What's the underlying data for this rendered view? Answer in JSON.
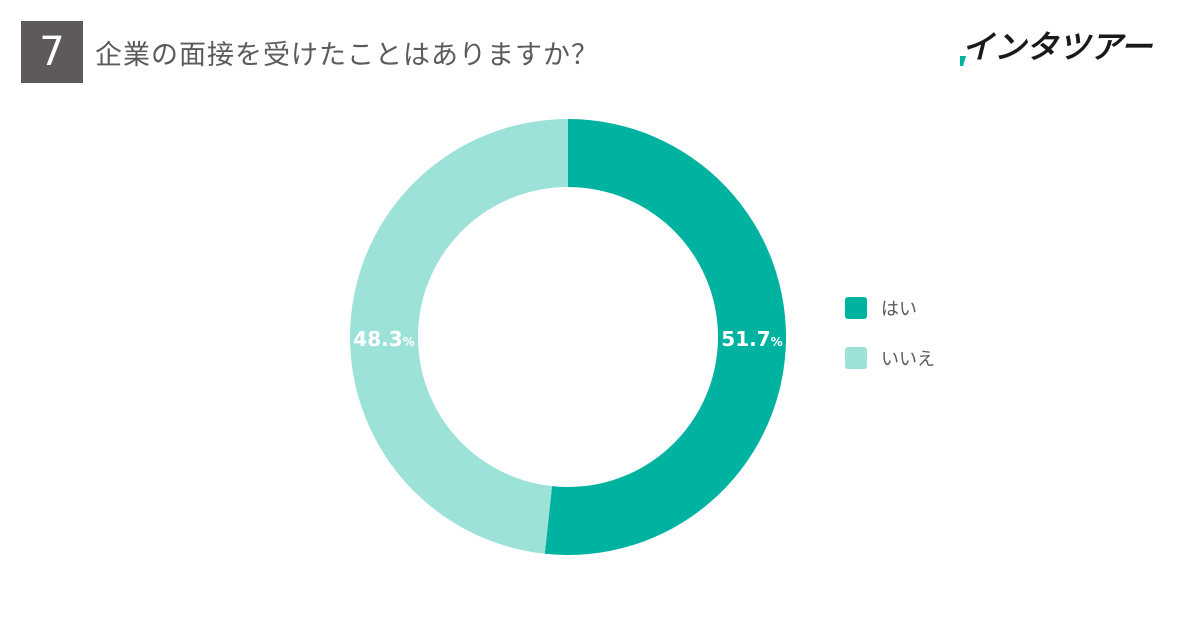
{
  "header": {
    "question_number": "7",
    "title": "企業の面接を受けたことはありますか？",
    "brand": "インタツアー"
  },
  "colors": {
    "yes": "#00b3a0",
    "no": "#9de2d9",
    "text": "#5e5a59"
  },
  "chart_data": {
    "type": "pie",
    "subtype": "donut",
    "title": "企業の面接を受けたことはありますか？",
    "categories": [
      "はい",
      "いいえ"
    ],
    "values": [
      51.7,
      48.3
    ],
    "unit": "%",
    "legend_position": "right"
  }
}
